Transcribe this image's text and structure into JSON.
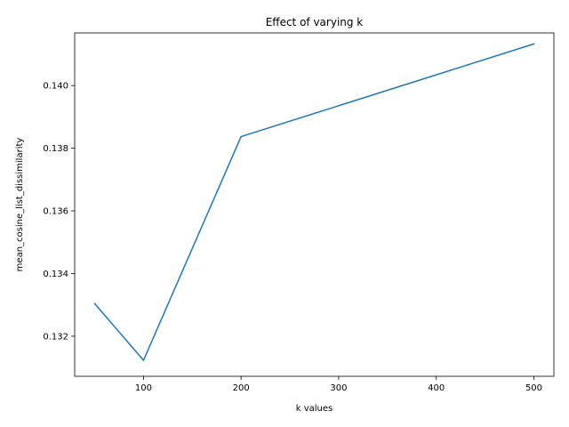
{
  "chart_data": {
    "type": "line",
    "title": "Effect of varying k",
    "xlabel": "k values",
    "ylabel": "mean_cosine_list_dissimilarity",
    "x": [
      50,
      100,
      200,
      500
    ],
    "series": [
      {
        "values": [
          0.13304,
          0.13123,
          0.13837,
          0.14133
        ],
        "color": "#1f77b4"
      }
    ],
    "xlim": [
      29.5,
      520.5
    ],
    "ylim": [
      0.13072,
      0.14168
    ],
    "xticks": [
      100,
      200,
      300,
      400,
      500
    ],
    "xtick_labels": [
      "100",
      "200",
      "300",
      "400",
      "500"
    ],
    "yticks": [
      0.132,
      0.134,
      0.136,
      0.138,
      0.14
    ],
    "ytick_labels": [
      "0.132",
      "0.134",
      "0.136",
      "0.138",
      "0.140"
    ],
    "grid": false,
    "legend": "none"
  }
}
